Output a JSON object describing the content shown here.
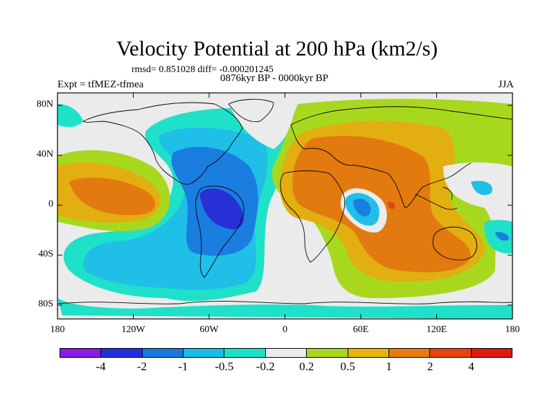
{
  "title": "Velocity Potential at 200 hPa (km2/s)",
  "stats": "rmsd= 0.851028 diff= -0.000201245",
  "period": "0876kyr BP - 0000kyr BP",
  "experiment": "Expt = tfMEZ-tfmea",
  "season": "JJA",
  "axes": {
    "lat_labels": [
      "80N",
      "40N",
      "0",
      "40S",
      "80S"
    ],
    "lon_labels": [
      "180",
      "120W",
      "60W",
      "0",
      "60E",
      "120E",
      "180"
    ]
  },
  "colorbar": {
    "colors": [
      "#8a1ae6",
      "#2030e0",
      "#1a78e0",
      "#19bde8",
      "#1ae0c8",
      "#ebebeb",
      "#a6d71c",
      "#e5b40f",
      "#e57a0f",
      "#e5430f",
      "#e01a0f"
    ],
    "labels": [
      "-4",
      "-2",
      "-1",
      "-0.5",
      "-0.2",
      "0.2",
      "0.5",
      "1",
      "2",
      "4"
    ]
  },
  "palette": {
    "neutral": "#ebebeb",
    "blue_dark": "#2630d6",
    "blue": "#1a7de0",
    "cyan": "#1fbfe8",
    "teal": "#1fe0c8",
    "yellow_green": "#a8d81e",
    "orange_light": "#e2ae10",
    "orange": "#e27a10",
    "red": "#e2451a"
  }
}
